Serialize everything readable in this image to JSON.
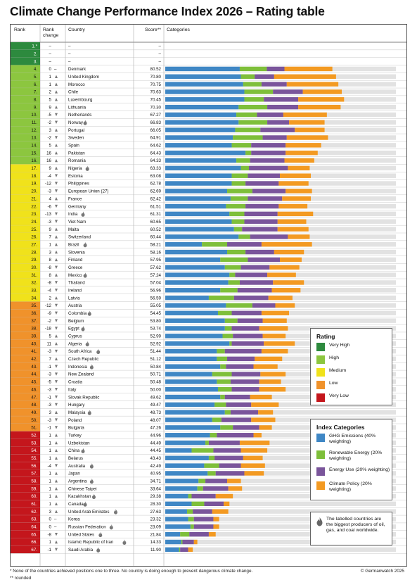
{
  "title": "Climate Change Performance Index 2026 – Rating table",
  "headers": {
    "rank": "Rank",
    "rank_change": "Rank change",
    "country": "Country",
    "score": "Score**",
    "categories": "Categories"
  },
  "colors": {
    "very_high": "#2d8a3e",
    "high": "#8cc63f",
    "medium": "#f0e21b",
    "low": "#f0922b",
    "very_low": "#c4161c",
    "ghg": "#3f87c5",
    "renewable": "#7ebf3a",
    "energy": "#7a559b",
    "policy": "#f39a22",
    "track": "#e2e2e2"
  },
  "chart_data": {
    "type": "table",
    "columns": [
      "Rank",
      "Rank change",
      "Country",
      "Score**",
      "Categories"
    ],
    "category_series": [
      "GHG Emissions",
      "Renewable Energy",
      "Energy Use",
      "Climate Policy"
    ],
    "rows": [
      {
        "rank": "1.*",
        "change": "–",
        "country": "–",
        "score": "–",
        "rating": "very_high",
        "bars": null,
        "flame": false
      },
      {
        "rank": "2.",
        "change": "–",
        "country": "–",
        "score": "–",
        "rating": "very_high",
        "bars": null,
        "flame": false
      },
      {
        "rank": "3.",
        "change": "–",
        "country": "–",
        "score": "–",
        "rating": "very_high",
        "bars": null,
        "flame": false
      },
      {
        "rank": "4.",
        "change": "0 –",
        "country": "Denmark",
        "score": "80.52",
        "rating": "high",
        "bars": [
          32.5,
          11.8,
          7.7,
          20.9
        ],
        "flame": false
      },
      {
        "rank": "5.",
        "change": "1 ▲",
        "country": "United Kingdom",
        "score": "70.80",
        "rating": "high",
        "bars": [
          33.0,
          6.0,
          8.5,
          27.0
        ],
        "flame": false
      },
      {
        "rank": "6.",
        "change": "1 ▲",
        "country": "Morocco",
        "score": "70.75",
        "rating": "high",
        "bars": [
          34.0,
          8.0,
          11.0,
          22.5
        ],
        "flame": false
      },
      {
        "rank": "7.",
        "change": "2 ▲",
        "country": "Chile",
        "score": "70.63",
        "rating": "high",
        "bars": [
          34.5,
          12.5,
          13.0,
          17.0
        ],
        "flame": false
      },
      {
        "rank": "8.",
        "change": "5 ▲",
        "country": "Luxembourg",
        "score": "70.45",
        "rating": "high",
        "bars": [
          34.5,
          8.5,
          15.0,
          20.0
        ],
        "flame": false
      },
      {
        "rank": "9.",
        "change": "9 ▲",
        "country": "Lithuania",
        "score": "70.30",
        "rating": "high",
        "bars": [
          32.0,
          12.5,
          13.5,
          18.5
        ],
        "flame": false
      },
      {
        "rank": "10.",
        "change": "-5 ▼",
        "country": "Netherlands",
        "score": "67.27",
        "rating": "high",
        "bars": [
          31.0,
          9.0,
          11.5,
          19.0
        ],
        "flame": false
      },
      {
        "rank": "11.",
        "change": "-2 ▼",
        "country": "Norway",
        "score": "66.83",
        "rating": "high",
        "bars": [
          32.0,
          12.5,
          9.5,
          15.5
        ],
        "flame": true
      },
      {
        "rank": "12.",
        "change": "3 ▲",
        "country": "Portugal",
        "score": "66.05",
        "rating": "high",
        "bars": [
          30.5,
          11.0,
          15.0,
          13.0
        ],
        "flame": false
      },
      {
        "rank": "13.",
        "change": "-2 ▼",
        "country": "Sweden",
        "score": "64.91",
        "rating": "high",
        "bars": [
          29.5,
          13.0,
          10.5,
          18.0
        ],
        "flame": false
      },
      {
        "rank": "14.",
        "change": "5 ▲",
        "country": "Spain",
        "score": "64.62",
        "rating": "high",
        "bars": [
          29.0,
          8.5,
          15.0,
          15.5
        ],
        "flame": false
      },
      {
        "rank": "15.",
        "change": "16 ▲",
        "country": "Pakistan",
        "score": "64.43",
        "rating": "high",
        "bars": [
          35.0,
          2.5,
          15.0,
          14.0
        ],
        "flame": false
      },
      {
        "rank": "16.",
        "change": "16 ▲",
        "country": "Romania",
        "score": "64.33",
        "rating": "high",
        "bars": [
          31.0,
          6.0,
          15.0,
          13.0
        ],
        "flame": false
      },
      {
        "rank": "17.",
        "change": "9 ▲",
        "country": "Nigeria",
        "score": "63.33",
        "rating": "medium",
        "bars": [
          33.0,
          3.5,
          17.0,
          9.5
        ],
        "flame": true
      },
      {
        "rank": "18.",
        "change": "-4 ▼",
        "country": "Estonia",
        "score": "63.08",
        "rating": "medium",
        "bars": [
          29.0,
          7.0,
          14.0,
          13.5
        ],
        "flame": false
      },
      {
        "rank": "19.",
        "change": "-12 ▼",
        "country": "Philippines",
        "score": "62.78",
        "rating": "medium",
        "bars": [
          29.0,
          6.0,
          14.5,
          13.0
        ],
        "flame": false
      },
      {
        "rank": "20.",
        "change": "-3 ▼",
        "country": "European Union (27)",
        "score": "62.69",
        "rating": "medium",
        "bars": [
          27.0,
          11.0,
          14.5,
          11.5
        ],
        "flame": false
      },
      {
        "rank": "21.",
        "change": "4 ▲",
        "country": "France",
        "score": "62.42",
        "rating": "medium",
        "bars": [
          28.5,
          7.5,
          15.0,
          12.5
        ],
        "flame": false
      },
      {
        "rank": "22.",
        "change": "-6 ▼",
        "country": "Germany",
        "score": "61.51",
        "rating": "medium",
        "bars": [
          26.5,
          8.5,
          14.5,
          12.5
        ],
        "flame": false
      },
      {
        "rank": "23.",
        "change": "-13 ▼",
        "country": "India",
        "score": "61.31",
        "rating": "medium",
        "bars": [
          28.0,
          6.5,
          14.5,
          15.5
        ],
        "flame": true
      },
      {
        "rank": "24.",
        "change": "-3 ▼",
        "country": "Viet Nam",
        "score": "60.65",
        "rating": "medium",
        "bars": [
          29.0,
          5.5,
          14.5,
          12.5
        ],
        "flame": false
      },
      {
        "rank": "25.",
        "change": "9 ▲",
        "country": "Malta",
        "score": "60.52",
        "rating": "medium",
        "bars": [
          30.0,
          3.5,
          15.5,
          13.5
        ],
        "flame": false
      },
      {
        "rank": "26.",
        "change": "7 ▲",
        "country": "Switzerland",
        "score": "60.44",
        "rating": "medium",
        "bars": [
          32.0,
          5.0,
          16.5,
          9.5
        ],
        "flame": false
      },
      {
        "rank": "27.",
        "change": "1 ▲",
        "country": "Brazil",
        "score": "58.21",
        "rating": "medium",
        "bars": [
          16.0,
          11.0,
          15.0,
          22.0
        ],
        "flame": true
      },
      {
        "rank": "28.",
        "change": "3 ▲",
        "country": "Slovenia",
        "score": "58.16",
        "rating": "medium",
        "bars": [
          27.0,
          8.0,
          12.5,
          13.0
        ],
        "flame": false
      },
      {
        "rank": "29.",
        "change": "8 ▲",
        "country": "Finland",
        "score": "57.95",
        "rating": "medium",
        "bars": [
          24.0,
          12.0,
          14.0,
          9.5
        ],
        "flame": false
      },
      {
        "rank": "30.",
        "change": "-8 ▼",
        "country": "Greece",
        "score": "57.62",
        "rating": "medium",
        "bars": [
          26.0,
          7.0,
          12.5,
          13.0
        ],
        "flame": false
      },
      {
        "rank": "31.",
        "change": "8 ▲",
        "country": "Mexico",
        "score": "57.24",
        "rating": "medium",
        "bars": [
          28.0,
          2.5,
          14.0,
          12.5
        ],
        "flame": true
      },
      {
        "rank": "32.",
        "change": "-8 ▼",
        "country": "Thailand",
        "score": "57.04",
        "rating": "medium",
        "bars": [
          27.5,
          5.0,
          14.5,
          13.5
        ],
        "flame": false
      },
      {
        "rank": "33.",
        "change": "-4 ▼",
        "country": "Ireland",
        "score": "56.96",
        "rating": "medium",
        "bars": [
          24.0,
          7.5,
          15.0,
          12.5
        ],
        "flame": false
      },
      {
        "rank": "34.",
        "change": "2 ▲",
        "country": "Latvia",
        "score": "56.59",
        "rating": "medium",
        "bars": [
          19.0,
          11.0,
          15.0,
          10.5
        ],
        "flame": false
      },
      {
        "rank": "35.",
        "change": "-12 ▼",
        "country": "Austria",
        "score": "55.05",
        "rating": "low",
        "bars": [
          26.5,
          11.5,
          10.0,
          8.5
        ],
        "flame": false
      },
      {
        "rank": "36.",
        "change": "-9 ▼",
        "country": "Colombia",
        "score": "54.45",
        "rating": "low",
        "bars": [
          23.0,
          6.0,
          13.0,
          12.0
        ],
        "flame": true
      },
      {
        "rank": "37.",
        "change": "-2 ▼",
        "country": "Belgium",
        "score": "53.80",
        "rating": "low",
        "bars": [
          26.0,
          5.5,
          11.0,
          10.5
        ],
        "flame": false
      },
      {
        "rank": "38.",
        "change": "-18 ▼",
        "country": "Egypt",
        "score": "53.74",
        "rating": "low",
        "bars": [
          26.0,
          3.0,
          12.0,
          12.5
        ],
        "flame": true
      },
      {
        "rank": "39.",
        "change": "5 ▲",
        "country": "Cyprus",
        "score": "52.99",
        "rating": "low",
        "bars": [
          25.0,
          4.5,
          13.0,
          10.0
        ],
        "flame": false
      },
      {
        "rank": "40.",
        "change": "11 ▲",
        "country": "Algeria",
        "score": "52.92",
        "rating": "low",
        "bars": [
          28.0,
          1.0,
          14.0,
          13.5
        ],
        "flame": true
      },
      {
        "rank": "41.",
        "change": "-3 ▼",
        "country": "South Africa",
        "score": "51.44",
        "rating": "low",
        "bars": [
          22.5,
          3.5,
          16.0,
          11.5
        ],
        "flame": true
      },
      {
        "rank": "42.",
        "change": "7 ▲",
        "country": "Czech Republic",
        "score": "51.12",
        "rating": "low",
        "bars": [
          22.5,
          4.5,
          12.0,
          12.0
        ],
        "flame": false
      },
      {
        "rank": "43.",
        "change": "-1 ▼",
        "country": "Indonesia",
        "score": "50.84",
        "rating": "low",
        "bars": [
          24.0,
          2.5,
          12.0,
          10.5
        ],
        "flame": true
      },
      {
        "rank": "44.",
        "change": "-3 ▼",
        "country": "New Zealand",
        "score": "50.71",
        "rating": "low",
        "bars": [
          20.5,
          8.5,
          12.5,
          11.0
        ],
        "flame": false
      },
      {
        "rank": "45.",
        "change": "-5 ▼",
        "country": "Croatia",
        "score": "50.48",
        "rating": "low",
        "bars": [
          22.5,
          6.0,
          12.5,
          9.5
        ],
        "flame": false
      },
      {
        "rank": "46.",
        "change": "-3 ▼",
        "country": "Italy",
        "score": "50.00",
        "rating": "low",
        "bars": [
          23.0,
          6.0,
          12.0,
          11.5
        ],
        "flame": false
      },
      {
        "rank": "47.",
        "change": "-1 ▼",
        "country": "Slovak Republic",
        "score": "49.62",
        "rating": "low",
        "bars": [
          24.0,
          2.0,
          11.0,
          9.5
        ],
        "flame": false
      },
      {
        "rank": "48.",
        "change": "-3 ▼",
        "country": "Hungary",
        "score": "49.47",
        "rating": "low",
        "bars": [
          21.5,
          5.0,
          11.0,
          12.0
        ],
        "flame": false
      },
      {
        "rank": "49.",
        "change": "3 ▲",
        "country": "Malaysia",
        "score": "48.73",
        "rating": "low",
        "bars": [
          26.0,
          2.5,
          12.0,
          6.5
        ],
        "flame": true
      },
      {
        "rank": "50.",
        "change": "-3 ▼",
        "country": "Poland",
        "score": "48.07",
        "rating": "low",
        "bars": [
          20.5,
          4.0,
          13.0,
          10.5
        ],
        "flame": false
      },
      {
        "rank": "51.",
        "change": "-1 ▼",
        "country": "Bulgaria",
        "score": "47.26",
        "rating": "low",
        "bars": [
          24.0,
          5.5,
          11.5,
          5.5
        ],
        "flame": false
      },
      {
        "rank": "52.",
        "change": "1 ▲",
        "country": "Turkey",
        "score": "44.96",
        "rating": "very_low",
        "bars": [
          19.5,
          3.0,
          16.0,
          3.5
        ],
        "flame": false
      },
      {
        "rank": "53.",
        "change": "1 ▲",
        "country": "Uzbekistan",
        "score": "44.49",
        "rating": "very_low",
        "bars": [
          17.5,
          1.5,
          13.5,
          13.0
        ],
        "flame": false
      },
      {
        "rank": "54.",
        "change": "1 ▲",
        "country": "China",
        "score": "44.45",
        "rating": "very_low",
        "bars": [
          11.5,
          9.5,
          12.0,
          11.5
        ],
        "flame": true
      },
      {
        "rank": "55.",
        "change": "1 ▲",
        "country": "Belarus",
        "score": "43.43",
        "rating": "very_low",
        "bars": [
          19.0,
          2.5,
          12.5,
          8.5
        ],
        "flame": false
      },
      {
        "rank": "56.",
        "change": "-4 ▼",
        "country": "Australia",
        "score": "42.49",
        "rating": "very_low",
        "bars": [
          17.0,
          6.5,
          9.5,
          10.5
        ],
        "flame": true
      },
      {
        "rank": "57.",
        "change": "1 ▲",
        "country": "Japan",
        "score": "40.95",
        "rating": "very_low",
        "bars": [
          18.5,
          3.5,
          12.5,
          8.5
        ],
        "flame": false
      },
      {
        "rank": "58.",
        "change": "1 ▲",
        "country": "Argentina",
        "score": "34.71",
        "rating": "very_low",
        "bars": [
          14.5,
          3.0,
          9.5,
          6.0
        ],
        "flame": true
      },
      {
        "rank": "59.",
        "change": "1 ▲",
        "country": "Chinese Taipei",
        "score": "33.64",
        "rating": "very_low",
        "bars": [
          14.0,
          2.5,
          11.0,
          6.0
        ],
        "flame": false
      },
      {
        "rank": "60.",
        "change": "1 ▲",
        "country": "Kazakhstan",
        "score": "29.38",
        "rating": "very_low",
        "bars": [
          10.0,
          1.5,
          10.5,
          7.5
        ],
        "flame": true
      },
      {
        "rank": "61.",
        "change": "1 ▲",
        "country": "Canada",
        "score": "28.30",
        "rating": "very_low",
        "bars": [
          11.5,
          5.5,
          8.5,
          2.5
        ],
        "flame": true
      },
      {
        "rank": "62.",
        "change": "3 ▲",
        "country": "United Arab Emirates",
        "score": "27.63",
        "rating": "very_low",
        "bars": [
          9.5,
          2.5,
          8.5,
          7.0
        ],
        "flame": true
      },
      {
        "rank": "63.",
        "change": "0 –",
        "country": "Korea",
        "score": "23.32",
        "rating": "very_low",
        "bars": [
          10.0,
          2.5,
          8.5,
          2.5
        ],
        "flame": false
      },
      {
        "rank": "64.",
        "change": "0 –",
        "country": "Russian Federation",
        "score": "23.09",
        "rating": "very_low",
        "bars": [
          11.0,
          1.5,
          8.5,
          2.5
        ],
        "flame": true
      },
      {
        "rank": "65.",
        "change": "-8 ▼",
        "country": "United States",
        "score": "21.84",
        "rating": "very_low",
        "bars": [
          6.5,
          4.0,
          8.5,
          3.0
        ],
        "flame": true
      },
      {
        "rank": "66.",
        "change": "1 ▲",
        "country": "Islamic Republic of Iran",
        "score": "14.33",
        "rating": "very_low",
        "bars": [
          7.0,
          0.5,
          5.0,
          1.5
        ],
        "flame": true
      },
      {
        "rank": "67.",
        "change": "-1 ▼",
        "country": "Saudi Arabia",
        "score": "11.90",
        "rating": "very_low",
        "bars": [
          6.0,
          0.5,
          3.5,
          2.0
        ],
        "flame": true
      }
    ]
  },
  "legend_rating": {
    "title": "Rating",
    "items": [
      {
        "label": "Very High",
        "color": "#2d8a3e"
      },
      {
        "label": "High",
        "color": "#8cc63f"
      },
      {
        "label": "Medium",
        "color": "#f0e21b"
      },
      {
        "label": "Low",
        "color": "#f0922b"
      },
      {
        "label": "Very Low",
        "color": "#c4161c"
      }
    ]
  },
  "legend_categories": {
    "title": "Index Categories",
    "items": [
      {
        "label": "GHG Emissions (40% weighting)",
        "color": "#3f87c5"
      },
      {
        "label": "Renewable Energy (20% weighting)",
        "color": "#7ebf3a"
      },
      {
        "label": "Energy Use (20% weighting)",
        "color": "#7a559b"
      },
      {
        "label": "Climate Policy (20% weighting)",
        "color": "#f39a22"
      }
    ]
  },
  "legend_note": "The labelled countries are the biggest producers of oil, gas, and coal worldwide.",
  "footnote1": "* None of the countries achieved positions one to three. No country is doing enough to prevent dangerous climate change.",
  "footnote2": "** rounded",
  "copyright": "© Germanwatch 2025"
}
